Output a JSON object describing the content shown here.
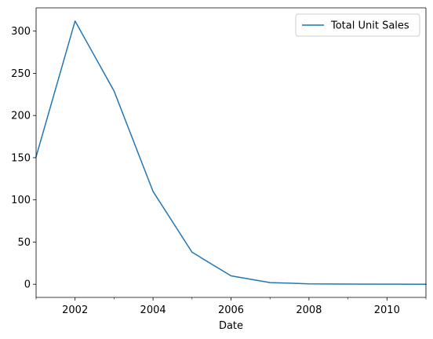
{
  "chart_data": {
    "type": "line",
    "title": "",
    "xlabel": "Date",
    "ylabel": "",
    "x": [
      2001,
      2002,
      2003,
      2004,
      2005,
      2006,
      2007,
      2008,
      2009,
      2010,
      2011
    ],
    "x_tick_values": [
      2002,
      2004,
      2006,
      2008,
      2010
    ],
    "x_tick_labels": [
      "2002",
      "2004",
      "2006",
      "2008",
      "2010"
    ],
    "x_minor_tick_values": [
      2001,
      2003,
      2005,
      2007,
      2009,
      2011
    ],
    "xlim": [
      2001,
      2011
    ],
    "y_tick_values": [
      0,
      50,
      100,
      150,
      200,
      250,
      300
    ],
    "y_tick_labels": [
      "0",
      "50",
      "100",
      "150",
      "200",
      "250",
      "300"
    ],
    "ylim": [
      -15.6,
      327.6
    ],
    "grid": false,
    "legend_placement": "top-right",
    "series": [
      {
        "name": "Total Unit Sales",
        "color": "#1f77b4",
        "values": [
          151,
          312,
          229,
          110,
          38,
          10,
          2,
          0.5,
          0.2,
          0.1,
          0
        ]
      }
    ]
  }
}
